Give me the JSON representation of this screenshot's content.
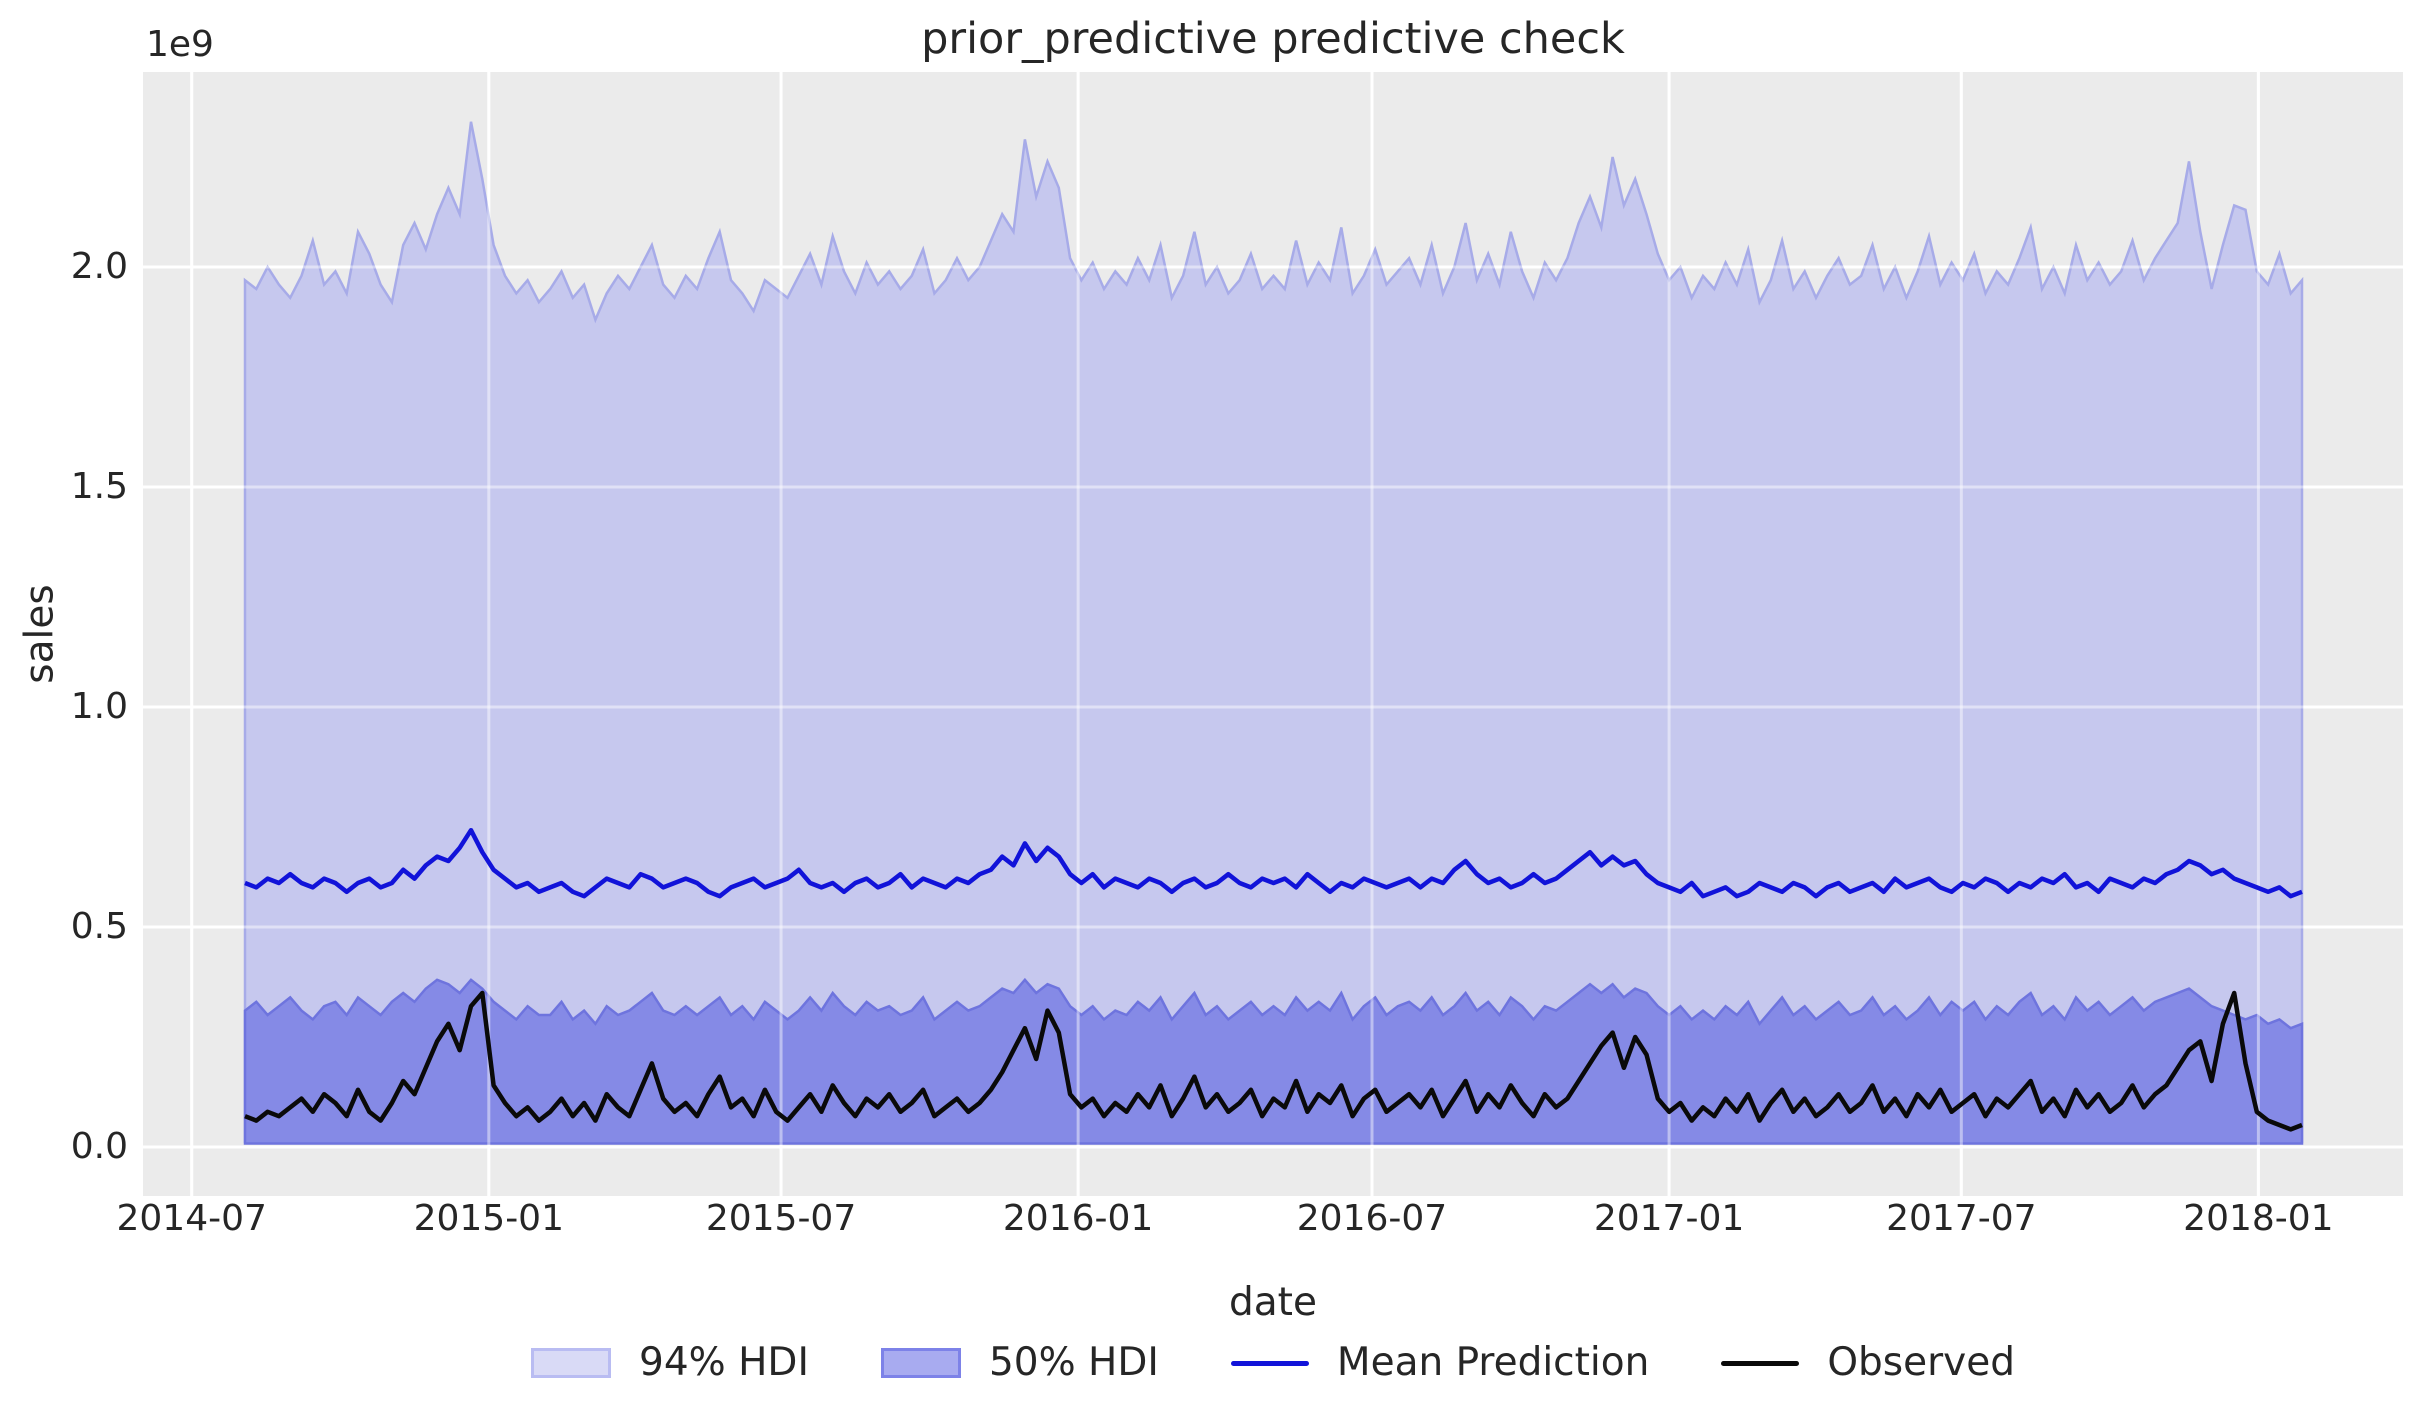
{
  "title": "prior_predictive predictive check",
  "axes": {
    "xlabel": "date",
    "ylabel": "sales",
    "y_offset_text": "1e9",
    "grid": true,
    "yticks": [
      {
        "label": "0.0",
        "value": 0.0
      },
      {
        "label": "0.5",
        "value": 0.5
      },
      {
        "label": "1.0",
        "value": 1.0
      },
      {
        "label": "1.5",
        "value": 1.5
      },
      {
        "label": "2.0",
        "value": 2.0
      }
    ],
    "xticks": [
      {
        "label": "2014-07",
        "date": "2014-07-01"
      },
      {
        "label": "2015-01",
        "date": "2015-01-01"
      },
      {
        "label": "2015-07",
        "date": "2015-07-01"
      },
      {
        "label": "2016-01",
        "date": "2016-01-01"
      },
      {
        "label": "2016-07",
        "date": "2016-07-01"
      },
      {
        "label": "2017-01",
        "date": "2017-01-01"
      },
      {
        "label": "2017-07",
        "date": "2017-07-01"
      },
      {
        "label": "2018-01",
        "date": "2018-01-01"
      }
    ]
  },
  "style": {
    "plot_bg": "#ebebeb",
    "grid_color": "#ffffff",
    "grid_over_opacity": 0.45,
    "text_color": "#262626",
    "hdi94_fill": "#c6c8ee",
    "hdi94_edge": "#a7abe8",
    "hdi50_fill": "#858ae6",
    "hdi50_edge": "#6e74de",
    "mean_color": "#1113d9",
    "observed_color": "#0a0a0a"
  },
  "legend": {
    "position": "bottom-center",
    "items": [
      {
        "label": "94% HDI",
        "type": "patch",
        "fill": "#d9daf6",
        "edge": "#b9bcf2"
      },
      {
        "label": "50% HDI",
        "type": "patch",
        "fill": "#a8abf0",
        "edge": "#7d82e8"
      },
      {
        "label": "Mean Prediction",
        "type": "line",
        "color": "#1113d9"
      },
      {
        "label": "Observed",
        "type": "line",
        "color": "#0a0a0a"
      }
    ]
  },
  "chart_data": {
    "type": "line",
    "unit": "sales x 1e9",
    "x_start_date": "2014-08-03",
    "x_freq_days": 7,
    "n_points": 183,
    "ylim": [
      -0.11,
      2.44
    ],
    "xlim_dates": [
      "2014-06-01",
      "2018-04-01"
    ],
    "legend_position": "bottom",
    "series": [
      {
        "name": "94% HDI upper",
        "values": [
          1.97,
          1.95,
          2.0,
          1.96,
          1.93,
          1.98,
          2.06,
          1.96,
          1.99,
          1.94,
          2.08,
          2.03,
          1.96,
          1.92,
          2.05,
          2.1,
          2.04,
          2.12,
          2.18,
          2.12,
          2.33,
          2.2,
          2.05,
          1.98,
          1.94,
          1.97,
          1.92,
          1.95,
          1.99,
          1.93,
          1.96,
          1.88,
          1.94,
          1.98,
          1.95,
          2.0,
          2.05,
          1.96,
          1.93,
          1.98,
          1.95,
          2.02,
          2.08,
          1.97,
          1.94,
          1.9,
          1.97,
          1.95,
          1.93,
          1.98,
          2.03,
          1.96,
          2.07,
          1.99,
          1.94,
          2.01,
          1.96,
          1.99,
          1.95,
          1.98,
          2.04,
          1.94,
          1.97,
          2.02,
          1.97,
          2.0,
          2.06,
          2.12,
          2.08,
          2.29,
          2.16,
          2.24,
          2.18,
          2.02,
          1.97,
          2.01,
          1.95,
          1.99,
          1.96,
          2.02,
          1.97,
          2.05,
          1.93,
          1.98,
          2.08,
          1.96,
          2.0,
          1.94,
          1.97,
          2.03,
          1.95,
          1.98,
          1.95,
          2.06,
          1.96,
          2.01,
          1.97,
          2.09,
          1.94,
          1.98,
          2.04,
          1.96,
          1.99,
          2.02,
          1.96,
          2.05,
          1.94,
          2.0,
          2.1,
          1.97,
          2.03,
          1.96,
          2.08,
          1.99,
          1.93,
          2.01,
          1.97,
          2.02,
          2.1,
          2.16,
          2.09,
          2.25,
          2.14,
          2.2,
          2.12,
          2.03,
          1.97,
          2.0,
          1.93,
          1.98,
          1.95,
          2.01,
          1.96,
          2.04,
          1.92,
          1.97,
          2.06,
          1.95,
          1.99,
          1.93,
          1.98,
          2.02,
          1.96,
          1.98,
          2.05,
          1.95,
          2.0,
          1.93,
          1.99,
          2.07,
          1.96,
          2.01,
          1.97,
          2.03,
          1.94,
          1.99,
          1.96,
          2.02,
          2.09,
          1.95,
          2.0,
          1.94,
          2.05,
          1.97,
          2.01,
          1.96,
          1.99,
          2.06,
          1.97,
          2.02,
          2.06,
          2.1,
          2.24,
          2.08,
          1.95,
          2.05,
          2.14,
          2.13,
          1.99,
          1.96,
          2.03,
          1.94,
          1.97
        ]
      },
      {
        "name": "94% HDI lower",
        "constant": 0.012
      },
      {
        "name": "50% HDI upper",
        "values": [
          0.31,
          0.33,
          0.3,
          0.32,
          0.34,
          0.31,
          0.29,
          0.32,
          0.33,
          0.3,
          0.34,
          0.32,
          0.3,
          0.33,
          0.35,
          0.33,
          0.36,
          0.38,
          0.37,
          0.35,
          0.38,
          0.36,
          0.33,
          0.31,
          0.29,
          0.32,
          0.3,
          0.3,
          0.33,
          0.29,
          0.31,
          0.28,
          0.32,
          0.3,
          0.31,
          0.33,
          0.35,
          0.31,
          0.3,
          0.32,
          0.3,
          0.32,
          0.34,
          0.3,
          0.32,
          0.29,
          0.33,
          0.31,
          0.29,
          0.31,
          0.34,
          0.31,
          0.35,
          0.32,
          0.3,
          0.33,
          0.31,
          0.32,
          0.3,
          0.31,
          0.34,
          0.29,
          0.31,
          0.33,
          0.31,
          0.32,
          0.34,
          0.36,
          0.35,
          0.38,
          0.35,
          0.37,
          0.36,
          0.32,
          0.3,
          0.32,
          0.29,
          0.31,
          0.3,
          0.33,
          0.31,
          0.34,
          0.29,
          0.32,
          0.35,
          0.3,
          0.32,
          0.29,
          0.31,
          0.33,
          0.3,
          0.32,
          0.3,
          0.34,
          0.31,
          0.33,
          0.31,
          0.35,
          0.29,
          0.32,
          0.34,
          0.3,
          0.32,
          0.33,
          0.31,
          0.34,
          0.3,
          0.32,
          0.35,
          0.31,
          0.33,
          0.3,
          0.34,
          0.32,
          0.29,
          0.32,
          0.31,
          0.33,
          0.35,
          0.37,
          0.35,
          0.37,
          0.34,
          0.36,
          0.35,
          0.32,
          0.3,
          0.32,
          0.29,
          0.31,
          0.29,
          0.32,
          0.3,
          0.33,
          0.28,
          0.31,
          0.34,
          0.3,
          0.32,
          0.29,
          0.31,
          0.33,
          0.3,
          0.31,
          0.34,
          0.3,
          0.32,
          0.29,
          0.31,
          0.34,
          0.3,
          0.33,
          0.31,
          0.33,
          0.29,
          0.32,
          0.3,
          0.33,
          0.35,
          0.3,
          0.32,
          0.29,
          0.34,
          0.31,
          0.33,
          0.3,
          0.32,
          0.34,
          0.31,
          0.33,
          0.34,
          0.35,
          0.36,
          0.34,
          0.32,
          0.31,
          0.3,
          0.29,
          0.3,
          0.28,
          0.29,
          0.27,
          0.28
        ]
      },
      {
        "name": "50% HDI lower",
        "constant": 0.008
      },
      {
        "name": "Mean Prediction",
        "values": [
          0.6,
          0.59,
          0.61,
          0.6,
          0.62,
          0.6,
          0.59,
          0.61,
          0.6,
          0.58,
          0.6,
          0.61,
          0.59,
          0.6,
          0.63,
          0.61,
          0.64,
          0.66,
          0.65,
          0.68,
          0.72,
          0.67,
          0.63,
          0.61,
          0.59,
          0.6,
          0.58,
          0.59,
          0.6,
          0.58,
          0.57,
          0.59,
          0.61,
          0.6,
          0.59,
          0.62,
          0.61,
          0.59,
          0.6,
          0.61,
          0.6,
          0.58,
          0.57,
          0.59,
          0.6,
          0.61,
          0.59,
          0.6,
          0.61,
          0.63,
          0.6,
          0.59,
          0.6,
          0.58,
          0.6,
          0.61,
          0.59,
          0.6,
          0.62,
          0.59,
          0.61,
          0.6,
          0.59,
          0.61,
          0.6,
          0.62,
          0.63,
          0.66,
          0.64,
          0.69,
          0.65,
          0.68,
          0.66,
          0.62,
          0.6,
          0.62,
          0.59,
          0.61,
          0.6,
          0.59,
          0.61,
          0.6,
          0.58,
          0.6,
          0.61,
          0.59,
          0.6,
          0.62,
          0.6,
          0.59,
          0.61,
          0.6,
          0.61,
          0.59,
          0.62,
          0.6,
          0.58,
          0.6,
          0.59,
          0.61,
          0.6,
          0.59,
          0.6,
          0.61,
          0.59,
          0.61,
          0.6,
          0.63,
          0.65,
          0.62,
          0.6,
          0.61,
          0.59,
          0.6,
          0.62,
          0.6,
          0.61,
          0.63,
          0.65,
          0.67,
          0.64,
          0.66,
          0.64,
          0.65,
          0.62,
          0.6,
          0.59,
          0.58,
          0.6,
          0.57,
          0.58,
          0.59,
          0.57,
          0.58,
          0.6,
          0.59,
          0.58,
          0.6,
          0.59,
          0.57,
          0.59,
          0.6,
          0.58,
          0.59,
          0.6,
          0.58,
          0.61,
          0.59,
          0.6,
          0.61,
          0.59,
          0.58,
          0.6,
          0.59,
          0.61,
          0.6,
          0.58,
          0.6,
          0.59,
          0.61,
          0.6,
          0.62,
          0.59,
          0.6,
          0.58,
          0.61,
          0.6,
          0.59,
          0.61,
          0.6,
          0.62,
          0.63,
          0.65,
          0.64,
          0.62,
          0.63,
          0.61,
          0.6,
          0.59,
          0.58,
          0.59,
          0.57,
          0.58
        ]
      },
      {
        "name": "Observed",
        "values": [
          0.07,
          0.06,
          0.08,
          0.07,
          0.09,
          0.11,
          0.08,
          0.12,
          0.1,
          0.07,
          0.13,
          0.08,
          0.06,
          0.1,
          0.15,
          0.12,
          0.18,
          0.24,
          0.28,
          0.22,
          0.32,
          0.35,
          0.14,
          0.1,
          0.07,
          0.09,
          0.06,
          0.08,
          0.11,
          0.07,
          0.1,
          0.06,
          0.12,
          0.09,
          0.07,
          0.13,
          0.19,
          0.11,
          0.08,
          0.1,
          0.07,
          0.12,
          0.16,
          0.09,
          0.11,
          0.07,
          0.13,
          0.08,
          0.06,
          0.09,
          0.12,
          0.08,
          0.14,
          0.1,
          0.07,
          0.11,
          0.09,
          0.12,
          0.08,
          0.1,
          0.13,
          0.07,
          0.09,
          0.11,
          0.08,
          0.1,
          0.13,
          0.17,
          0.22,
          0.27,
          0.2,
          0.31,
          0.26,
          0.12,
          0.09,
          0.11,
          0.07,
          0.1,
          0.08,
          0.12,
          0.09,
          0.14,
          0.07,
          0.11,
          0.16,
          0.09,
          0.12,
          0.08,
          0.1,
          0.13,
          0.07,
          0.11,
          0.09,
          0.15,
          0.08,
          0.12,
          0.1,
          0.14,
          0.07,
          0.11,
          0.13,
          0.08,
          0.1,
          0.12,
          0.09,
          0.13,
          0.07,
          0.11,
          0.15,
          0.08,
          0.12,
          0.09,
          0.14,
          0.1,
          0.07,
          0.12,
          0.09,
          0.11,
          0.15,
          0.19,
          0.23,
          0.26,
          0.18,
          0.25,
          0.21,
          0.11,
          0.08,
          0.1,
          0.06,
          0.09,
          0.07,
          0.11,
          0.08,
          0.12,
          0.06,
          0.1,
          0.13,
          0.08,
          0.11,
          0.07,
          0.09,
          0.12,
          0.08,
          0.1,
          0.14,
          0.08,
          0.11,
          0.07,
          0.12,
          0.09,
          0.13,
          0.08,
          0.1,
          0.12,
          0.07,
          0.11,
          0.09,
          0.12,
          0.15,
          0.08,
          0.11,
          0.07,
          0.13,
          0.09,
          0.12,
          0.08,
          0.1,
          0.14,
          0.09,
          0.12,
          0.14,
          0.18,
          0.22,
          0.24,
          0.15,
          0.28,
          0.35,
          0.19,
          0.08,
          0.06,
          0.05,
          0.04,
          0.05
        ]
      }
    ]
  }
}
